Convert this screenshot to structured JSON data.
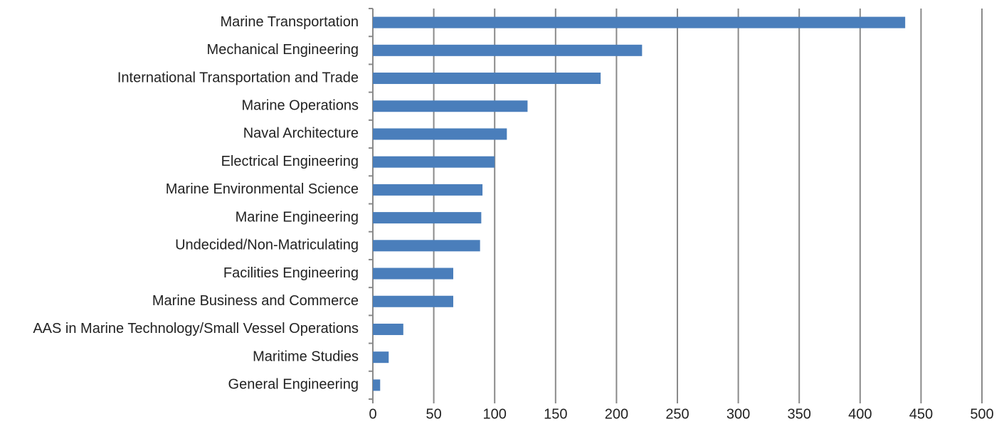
{
  "chart_data": {
    "type": "bar",
    "orientation": "horizontal",
    "categories": [
      "Marine Transportation",
      "Mechanical Engineering",
      "International Transportation and Trade",
      "Marine Operations",
      "Naval Architecture",
      "Electrical Engineering",
      "Marine Environmental Science",
      "Marine Engineering",
      "Undecided/Non-Matriculating",
      "Facilities Engineering",
      "Marine Business and Commerce",
      "AAS in Marine Technology/Small Vessel Operations",
      "Maritime Studies",
      "General Engineering"
    ],
    "values": [
      437,
      221,
      187,
      127,
      110,
      100,
      90,
      89,
      88,
      66,
      66,
      25,
      13,
      6
    ],
    "color": "#4a7ebb",
    "xlim": [
      0,
      500
    ],
    "xticks": [
      0,
      50,
      100,
      150,
      200,
      250,
      300,
      350,
      400,
      450,
      500
    ],
    "grid": true
  }
}
